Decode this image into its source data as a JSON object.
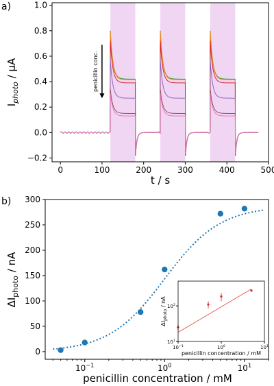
{
  "figure": {
    "panel_a_label": "a)",
    "panel_b_label": "b)"
  },
  "chart_data": [
    {
      "type": "line",
      "panel": "a)",
      "xlabel": "t / s",
      "ylabel_main": "I",
      "ylabel_sub": "photo",
      "ylabel_unit": " / µA",
      "xlim": [
        -20,
        500
      ],
      "ylim": [
        -0.23,
        1.02
      ],
      "xticks": [
        0,
        100,
        200,
        300,
        400,
        500
      ],
      "yticks": [
        -0.2,
        0.0,
        0.2,
        0.4,
        0.6,
        0.8,
        1.0
      ],
      "xtick_labels": [
        "0",
        "100",
        "200",
        "300",
        "400",
        "500"
      ],
      "ytick_labels": [
        "−0.2",
        "0.0",
        "0.2",
        "0.4",
        "0.6",
        "0.8",
        "1.0"
      ],
      "illumination_windows": [
        [
          120,
          180
        ],
        [
          240,
          300
        ],
        [
          360,
          420
        ]
      ],
      "window_color": "#f1d6f4",
      "annotation": "penicillin conc.",
      "annotation_arrow": {
        "x": 100,
        "y_from": 0.69,
        "y_to": 0.27
      },
      "series": [
        {
          "color": "#2ca02c",
          "peak": 0.8,
          "plateau": 0.42
        },
        {
          "color": "#ff7f0e",
          "peak": 0.79,
          "plateau": 0.415
        },
        {
          "color": "#d62728",
          "peak": 0.72,
          "plateau": 0.39
        },
        {
          "color": "#9467bd",
          "peak": 0.57,
          "plateau": 0.27
        },
        {
          "color": "#8c564b",
          "peak": 0.34,
          "plateau": 0.15
        },
        {
          "color": "#e377c2",
          "peak": 0.31,
          "plateau": 0.13
        }
      ]
    },
    {
      "type": "scatter",
      "panel": "b)",
      "xlabel": "penicillin concentration / mM",
      "ylabel_main": "ΔI",
      "ylabel_sub": "photo",
      "ylabel_unit": " / nA",
      "xscale": "log",
      "xlim": [
        0.032,
        20
      ],
      "ylim": [
        -15,
        300
      ],
      "xticks": [
        0.1,
        1,
        10
      ],
      "xtick_base": "10",
      "xtick_exps": [
        "−1",
        "0",
        "1"
      ],
      "yticks": [
        0,
        50,
        100,
        150,
        200,
        250,
        300
      ],
      "ytick_labels": [
        "0",
        "50",
        "100",
        "150",
        "200",
        "250",
        "300"
      ],
      "points": {
        "x": [
          0.05,
          0.1,
          0.5,
          1,
          5,
          10
        ],
        "y": [
          3,
          18,
          78,
          162,
          272,
          282
        ]
      },
      "point_color": "#1f77b4",
      "fit": {
        "style": "dotted",
        "color": "#1f77b4",
        "model": "hill",
        "top": 287,
        "bottom": 0,
        "ec50": 1.0,
        "hill_n": 1.25
      },
      "inset": {
        "xlabel": "penicillin concentration / mM",
        "ylabel_main": "ΔI",
        "ylabel_sub": "photo",
        "ylabel_unit": " / nA",
        "xscale": "log",
        "yscale": "log",
        "xlim": [
          0.1,
          10
        ],
        "ylim": [
          10,
          500
        ],
        "xticks": [
          0.1,
          1,
          10
        ],
        "xtick_base": "10",
        "xtick_exps": [
          "−1",
          "0",
          "1"
        ],
        "yticks": [
          10,
          100
        ],
        "ytick_base": "10",
        "ytick_exps": [
          "1",
          "2"
        ],
        "points": {
          "x": [
            0.1,
            0.5,
            1,
            5
          ],
          "y": [
            25,
            110,
            185,
            270
          ]
        },
        "yerr": [
          5,
          25,
          50,
          15
        ],
        "point_color": "#d62728",
        "line_color": "#e0533f",
        "line_x": [
          0.1,
          5
        ],
        "line_y": [
          18,
          300
        ]
      }
    }
  ]
}
